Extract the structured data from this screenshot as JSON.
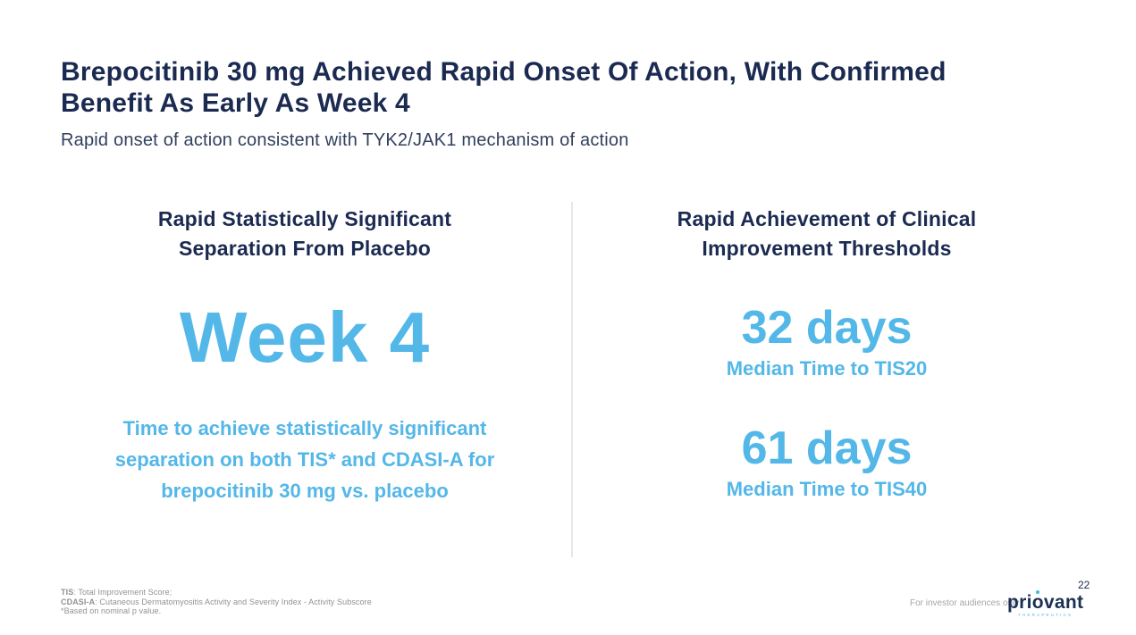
{
  "header": {
    "title_lines": [
      "Brepocitinib 30 mg Achieved Rapid Onset Of Action, With Confirmed",
      "Benefit As Early As Week 4"
    ],
    "subtitle": "Rapid onset of action consistent with TYK2/JAK1 mechanism of action"
  },
  "left_panel": {
    "heading_lines": [
      "Rapid Statistically Significant",
      "Separation From Placebo"
    ],
    "highlight": "Week 4",
    "caption_lines": [
      "Time to achieve statistically significant",
      "separation on both TIS* and CDASI-A for",
      "brepocitinib 30 mg vs. placebo"
    ]
  },
  "right_panel": {
    "heading_lines": [
      "Rapid Achievement of Clinical",
      "Improvement Thresholds"
    ],
    "stats": [
      {
        "value": "32 days",
        "label": "Median Time to TIS20"
      },
      {
        "value": "61 days",
        "label": "Median Time to TIS40"
      }
    ]
  },
  "footnotes": [
    {
      "term": "TIS",
      "text": ": Total Improvement Score;"
    },
    {
      "term": "CDASI-A",
      "text": ": Cutaneous Dermatomyositis Activity and Severity Index - Activity Subscore"
    },
    {
      "term": "",
      "text": "*Based on nominal p value."
    }
  ],
  "footer": {
    "audience_note": "For investor audiences only",
    "logo_pre": "pri",
    "logo_o": "o",
    "logo_post": "vant",
    "logo_subtext": "THERAPEUTICS",
    "page_number": "22"
  },
  "colors": {
    "navy": "#1b2a51",
    "slate": "#31405f",
    "light_blue": "#53b7e8",
    "footnote_gray": "#8f9193",
    "faint_gray": "#a6a6a6",
    "divider": "#e7e7e7",
    "logo_navy": "#1c2f55",
    "logo_teal": "#3fbcd9"
  }
}
